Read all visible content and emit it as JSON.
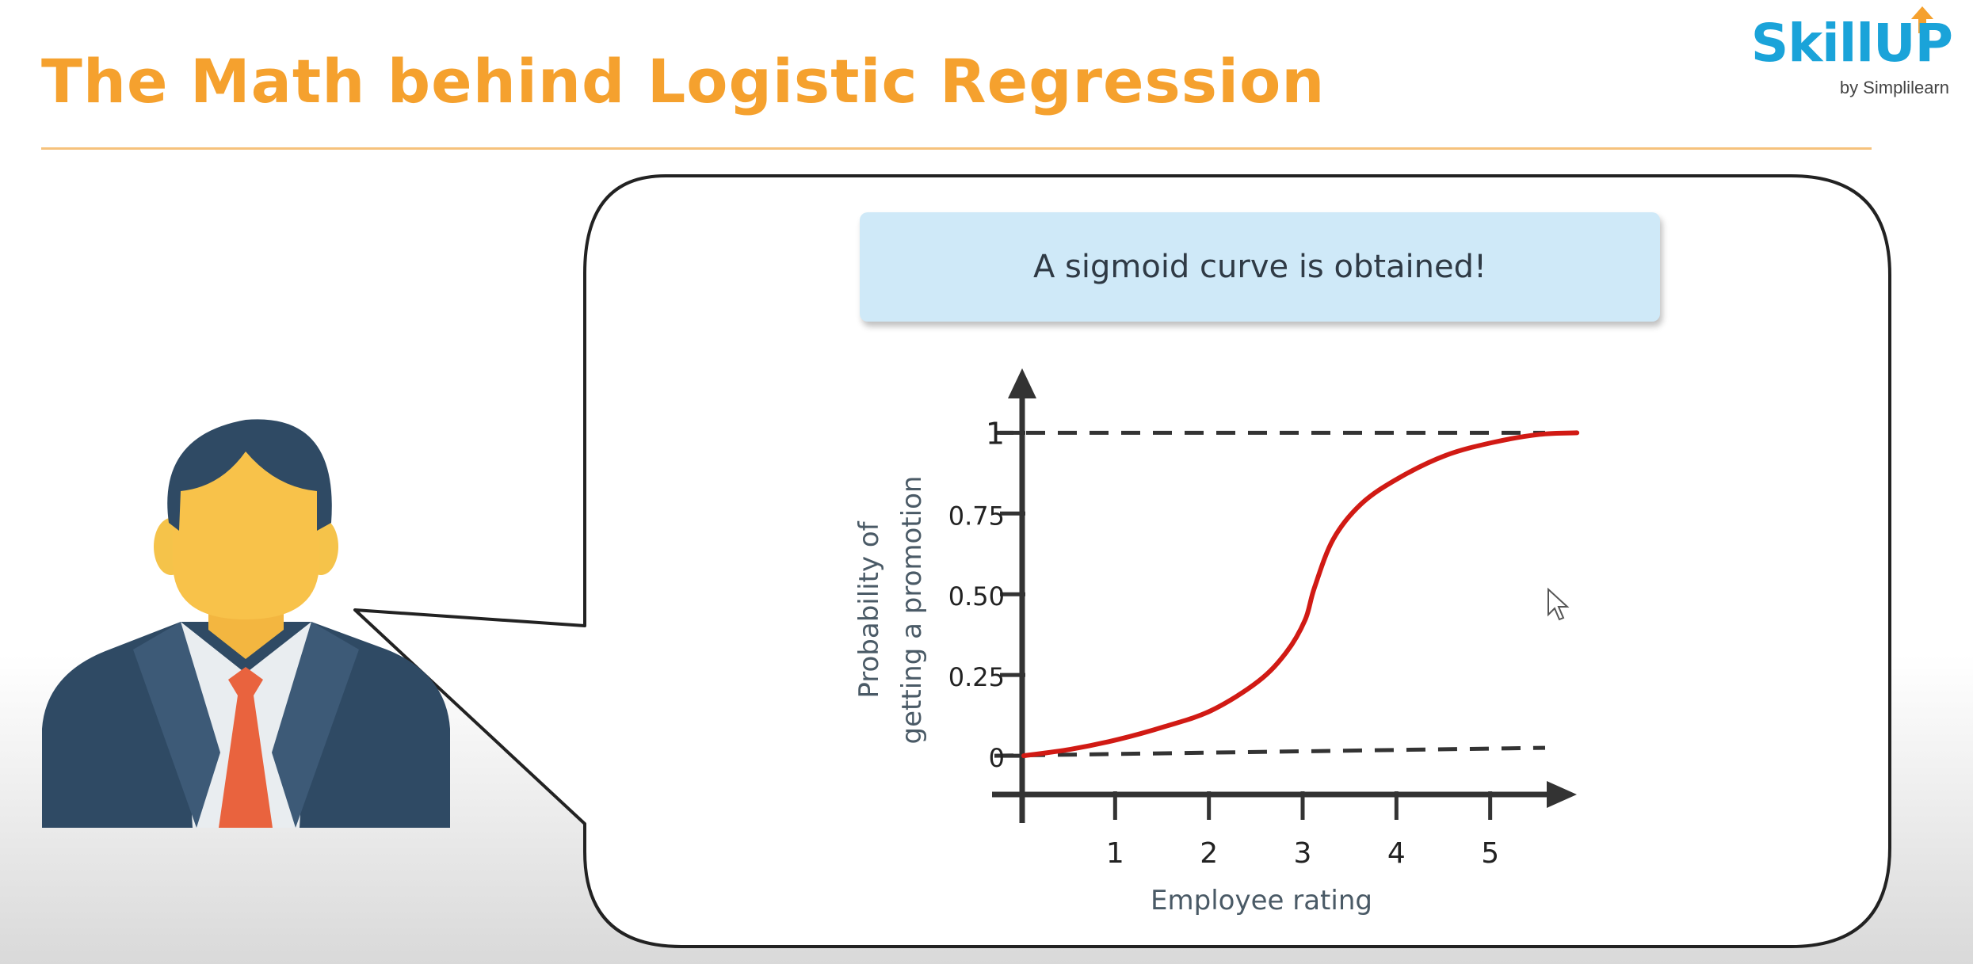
{
  "slide": {
    "title": "The Math behind Logistic Regression",
    "caption": "A sigmoid curve is obtained!"
  },
  "brand": {
    "name": "SkillUP",
    "sub": "by Simplilearn",
    "color": "#1aa3d9",
    "arrow_color": "#f5a12e"
  },
  "colors": {
    "title": "#f5a12e",
    "curve": "#d11a14",
    "axis": "#333333",
    "caption_bg": "#cfe9f8"
  },
  "icons": [
    "businessman-icon",
    "cursor-icon",
    "skillup-arrow-icon"
  ],
  "chart_data": {
    "type": "line",
    "xlabel": "Employee rating",
    "ylabel": [
      "Probability of",
      "getting a promotion"
    ],
    "x_ticks": [
      1,
      2,
      3,
      4,
      5
    ],
    "y_ticks": [
      {
        "value": 0,
        "label": "0"
      },
      {
        "value": 0.25,
        "label": "0.25"
      },
      {
        "value": 0.5,
        "label": "0.50"
      },
      {
        "value": 0.75,
        "label": "0.75"
      },
      {
        "value": 1,
        "label": "1"
      }
    ],
    "xlim": [
      0,
      6
    ],
    "ylim": [
      -0.12,
      1.18
    ],
    "asymptotes": [
      0,
      1
    ],
    "grid": false,
    "series": [
      {
        "values": [
          [
            0,
            0.0
          ],
          [
            0.5,
            0.02
          ],
          [
            1,
            0.05
          ],
          [
            1.5,
            0.09
          ],
          [
            2,
            0.14
          ],
          [
            2.5,
            0.23
          ],
          [
            2.8,
            0.32
          ],
          [
            3.0,
            0.42
          ],
          [
            3.1,
            0.52
          ],
          [
            3.3,
            0.67
          ],
          [
            3.6,
            0.78
          ],
          [
            4,
            0.86
          ],
          [
            4.5,
            0.93
          ],
          [
            5,
            0.97
          ],
          [
            5.5,
            0.995
          ],
          [
            5.9,
            1.0
          ]
        ]
      }
    ]
  }
}
